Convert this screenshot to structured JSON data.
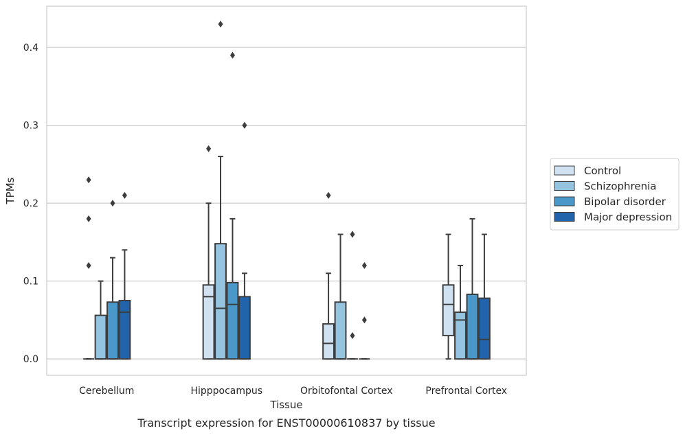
{
  "caption": "Transcript expression for ENST00000610837 by tissue",
  "chart_data": {
    "type": "box",
    "xlabel": "Tissue",
    "ylabel": "TPMs",
    "ylim": [
      -0.021,
      0.453
    ],
    "yticks": [
      0.0,
      0.1,
      0.2,
      0.3,
      0.4
    ],
    "ytick_labels": [
      "0.0",
      "0.1",
      "0.2",
      "0.3",
      "0.4"
    ],
    "grid": "horizontal",
    "legend_position": "right",
    "categories": [
      "Cerebellum",
      "Hipppocampus",
      "Orbitofontal Cortex",
      "Prefrontal Cortex"
    ],
    "series": [
      {
        "name": "Control",
        "color": "#d0e1f2",
        "boxes": [
          {
            "q1": 0,
            "median": 0,
            "q3": 0,
            "whislo": 0,
            "whishi": 0,
            "fliers": [
              0.12,
              0.18,
              0.23
            ]
          },
          {
            "q1": 0,
            "median": 0.08,
            "q3": 0.095,
            "whislo": 0,
            "whishi": 0.2,
            "fliers": [
              0.27
            ]
          },
          {
            "q1": 0,
            "median": 0.02,
            "q3": 0.045,
            "whislo": 0,
            "whishi": 0.11,
            "fliers": [
              0.21
            ]
          },
          {
            "q1": 0.03,
            "median": 0.07,
            "q3": 0.095,
            "whislo": 0,
            "whishi": 0.16,
            "fliers": []
          }
        ]
      },
      {
        "name": "Schizophrenia",
        "color": "#94c4df",
        "boxes": [
          {
            "q1": 0,
            "median": 0,
            "q3": 0.056,
            "whislo": 0,
            "whishi": 0.1,
            "fliers": []
          },
          {
            "q1": 0,
            "median": 0.065,
            "q3": 0.148,
            "whislo": 0,
            "whishi": 0.26,
            "fliers": [
              0.43
            ]
          },
          {
            "q1": 0,
            "median": 0,
            "q3": 0.073,
            "whislo": 0,
            "whishi": 0.16,
            "fliers": []
          },
          {
            "q1": 0,
            "median": 0.05,
            "q3": 0.06,
            "whislo": 0,
            "whishi": 0.12,
            "fliers": []
          }
        ]
      },
      {
        "name": "Bipolar disorder",
        "color": "#4a98c9",
        "boxes": [
          {
            "q1": 0,
            "median": 0,
            "q3": 0.073,
            "whislo": 0,
            "whishi": 0.13,
            "fliers": [
              0.2
            ]
          },
          {
            "q1": 0,
            "median": 0.07,
            "q3": 0.098,
            "whislo": 0,
            "whishi": 0.18,
            "fliers": [
              0.39
            ]
          },
          {
            "q1": 0,
            "median": 0,
            "q3": 0,
            "whislo": 0,
            "whishi": 0,
            "fliers": [
              0.03,
              0.16
            ]
          },
          {
            "q1": 0,
            "median": 0,
            "q3": 0.083,
            "whislo": 0,
            "whishi": 0.18,
            "fliers": []
          }
        ]
      },
      {
        "name": "Major depression",
        "color": "#2164ab",
        "boxes": [
          {
            "q1": 0,
            "median": 0.06,
            "q3": 0.075,
            "whislo": 0,
            "whishi": 0.14,
            "fliers": [
              0.21
            ]
          },
          {
            "q1": 0,
            "median": 0,
            "q3": 0.08,
            "whislo": 0,
            "whishi": 0.11,
            "fliers": [
              0.3
            ]
          },
          {
            "q1": 0,
            "median": 0,
            "q3": 0,
            "whislo": 0,
            "whishi": 0,
            "fliers": [
              0.05,
              0.12
            ]
          },
          {
            "q1": 0,
            "median": 0.025,
            "q3": 0.078,
            "whislo": 0,
            "whishi": 0.16,
            "fliers": []
          }
        ]
      }
    ]
  }
}
